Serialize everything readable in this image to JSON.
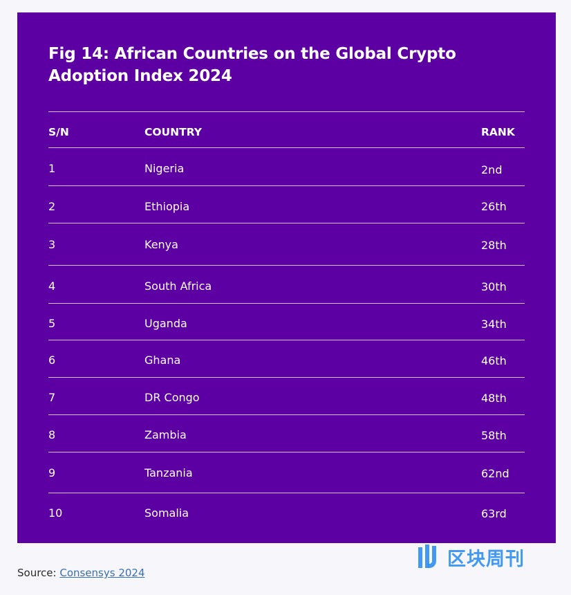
{
  "chart_data": {
    "type": "table",
    "title": "Fig 14: African Countries on the Global Crypto Adoption Index 2024",
    "columns": [
      "S/N",
      "COUNTRY",
      "RANK"
    ],
    "rows": [
      [
        "1",
        "Nigeria",
        "2nd"
      ],
      [
        "2",
        "Ethiopia",
        "26th"
      ],
      [
        "3",
        "Kenya",
        "28th"
      ],
      [
        "4",
        "South Africa",
        "30th"
      ],
      [
        "5",
        "Uganda",
        "34th"
      ],
      [
        "6",
        "Ghana",
        "46th"
      ],
      [
        "7",
        "DR Congo",
        "48th"
      ],
      [
        "8",
        "Zambia",
        "58th"
      ],
      [
        "9",
        "Tanzania",
        "62nd"
      ],
      [
        "10",
        "Somalia",
        "63rd"
      ]
    ]
  },
  "source": {
    "prefix": "Source: ",
    "link_text": "Consensys 2024"
  },
  "watermark": {
    "text": "区块周刊"
  },
  "colors": {
    "card_background": "#5c00a3",
    "text": "#ffffff",
    "link": "#3a6fb0",
    "watermark": "#2f8ff0"
  }
}
